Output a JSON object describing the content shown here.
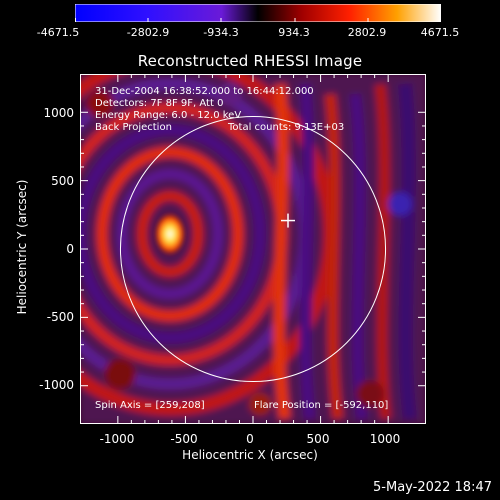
{
  "colorbar": {
    "tick_labels": [
      "-4671.5",
      "-2802.9",
      "-934.3",
      "934.3",
      "2802.9",
      "4671.5"
    ],
    "range": [
      -4671.5,
      4671.5
    ]
  },
  "title": "Reconstructed RHESSI Image",
  "info": {
    "time": "31-Dec-2004 16:38:52.000 to 16:44:12.000",
    "detectors": "Detectors: 7F 8F 9F, Att 0",
    "energy": "Energy Range: 6.0 - 12.0 keV",
    "method": "Back Projection",
    "counts": "Total counts: 9.13E+03",
    "spin_axis": "Spin Axis = [259,208]",
    "flare_position": "Flare Position = [-592,110]"
  },
  "axes": {
    "xlabel": "Heliocentric X (arcsec)",
    "ylabel": "Heliocentric Y (arcsec)",
    "x_ticks": [
      "-1000",
      "-500",
      "0",
      "500",
      "1000"
    ],
    "y_ticks": [
      "1000",
      "500",
      "0",
      "-500",
      "-1000"
    ],
    "xlim": [
      -1280,
      1280
    ],
    "ylim": [
      -1280,
      1280
    ]
  },
  "solar_limb_radius_arcsec": 975,
  "spin_axis_xy": [
    259,
    208
  ],
  "flare_xy": [
    -592,
    110
  ],
  "footer_date": "5-May-2022 18:47"
}
